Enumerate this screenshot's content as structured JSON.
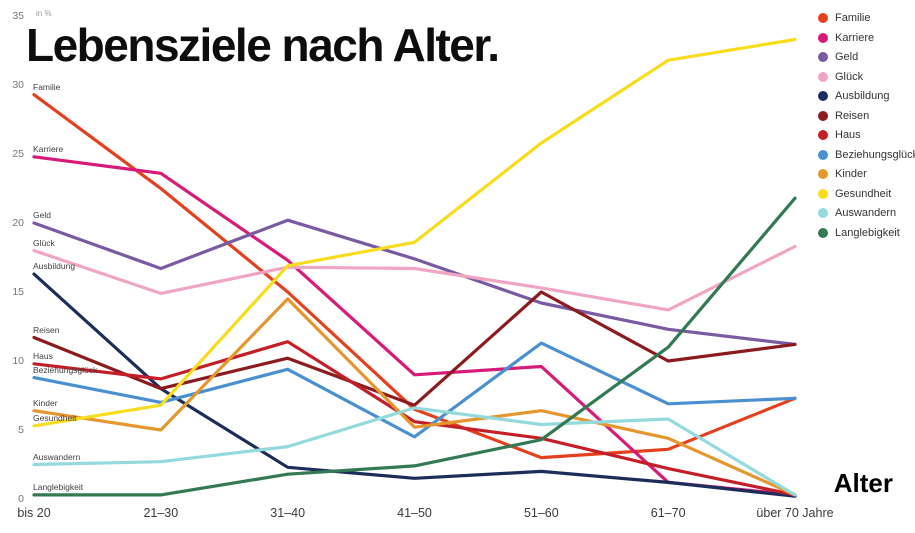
{
  "title": "Lebensziele nach Alter.",
  "y_axis": {
    "unit": "in %",
    "ticks": [
      0,
      5,
      10,
      15,
      20,
      25,
      30,
      35
    ]
  },
  "x_axis": {
    "label": "Alter"
  },
  "chart_data": {
    "type": "line",
    "title": "Lebensziele nach Alter.",
    "xlabel": "Alter",
    "ylabel": "in %",
    "ylim": [
      0,
      35
    ],
    "yticks": [
      0,
      5,
      10,
      15,
      20,
      25,
      30,
      35
    ],
    "grid": false,
    "legend_position": "top-right",
    "categories": [
      "bis 20",
      "21–30",
      "31–40",
      "41–50",
      "51–60",
      "61–70",
      "über 70 Jahre"
    ],
    "series": [
      {
        "name": "Familie",
        "color": "#e5401e",
        "values": [
          29.3,
          22.5,
          15.0,
          6.5,
          3.0,
          3.6,
          7.3
        ]
      },
      {
        "name": "Karriere",
        "color": "#d81b78",
        "values": [
          24.8,
          23.6,
          17.3,
          9.0,
          9.6,
          1.2,
          0.3
        ]
      },
      {
        "name": "Geld",
        "color": "#7a5aa0",
        "values": [
          20.0,
          16.7,
          20.2,
          17.4,
          14.2,
          12.3,
          11.2
        ]
      },
      {
        "name": "Glück",
        "color": "#efa6c4",
        "values": [
          18.0,
          14.9,
          16.8,
          16.7,
          15.3,
          13.7,
          18.3
        ]
      },
      {
        "name": "Ausbildung",
        "color": "#1c2d5a",
        "values": [
          16.3,
          8.0,
          2.3,
          1.5,
          2.0,
          1.2,
          0.2
        ]
      },
      {
        "name": "Reisen",
        "color": "#8c1b20",
        "values": [
          11.7,
          8.0,
          10.2,
          6.8,
          15.0,
          10.0,
          11.2
        ]
      },
      {
        "name": "Haus",
        "color": "#c41f28",
        "values": [
          9.8,
          8.7,
          11.4,
          5.6,
          4.4,
          2.2,
          0.3
        ]
      },
      {
        "name": "Beziehungsglück",
        "color": "#4a90d0",
        "values": [
          8.8,
          7.0,
          9.4,
          4.5,
          11.3,
          6.9,
          7.3
        ]
      },
      {
        "name": "Kinder",
        "color": "#e6962e",
        "values": [
          6.4,
          5.0,
          14.5,
          5.2,
          6.4,
          4.4,
          0.3
        ]
      },
      {
        "name": "Gesundheit",
        "color": "#f8dc1e",
        "values": [
          5.3,
          6.8,
          16.9,
          18.6,
          25.8,
          31.8,
          33.3
        ]
      },
      {
        "name": "Auswandern",
        "color": "#93d9dd",
        "values": [
          2.5,
          2.7,
          3.8,
          6.6,
          5.4,
          5.8,
          0.3
        ]
      },
      {
        "name": "Langlebigkeit",
        "color": "#337a54",
        "values": [
          0.3,
          0.3,
          1.8,
          2.4,
          4.3,
          11.0,
          21.8
        ]
      }
    ]
  }
}
